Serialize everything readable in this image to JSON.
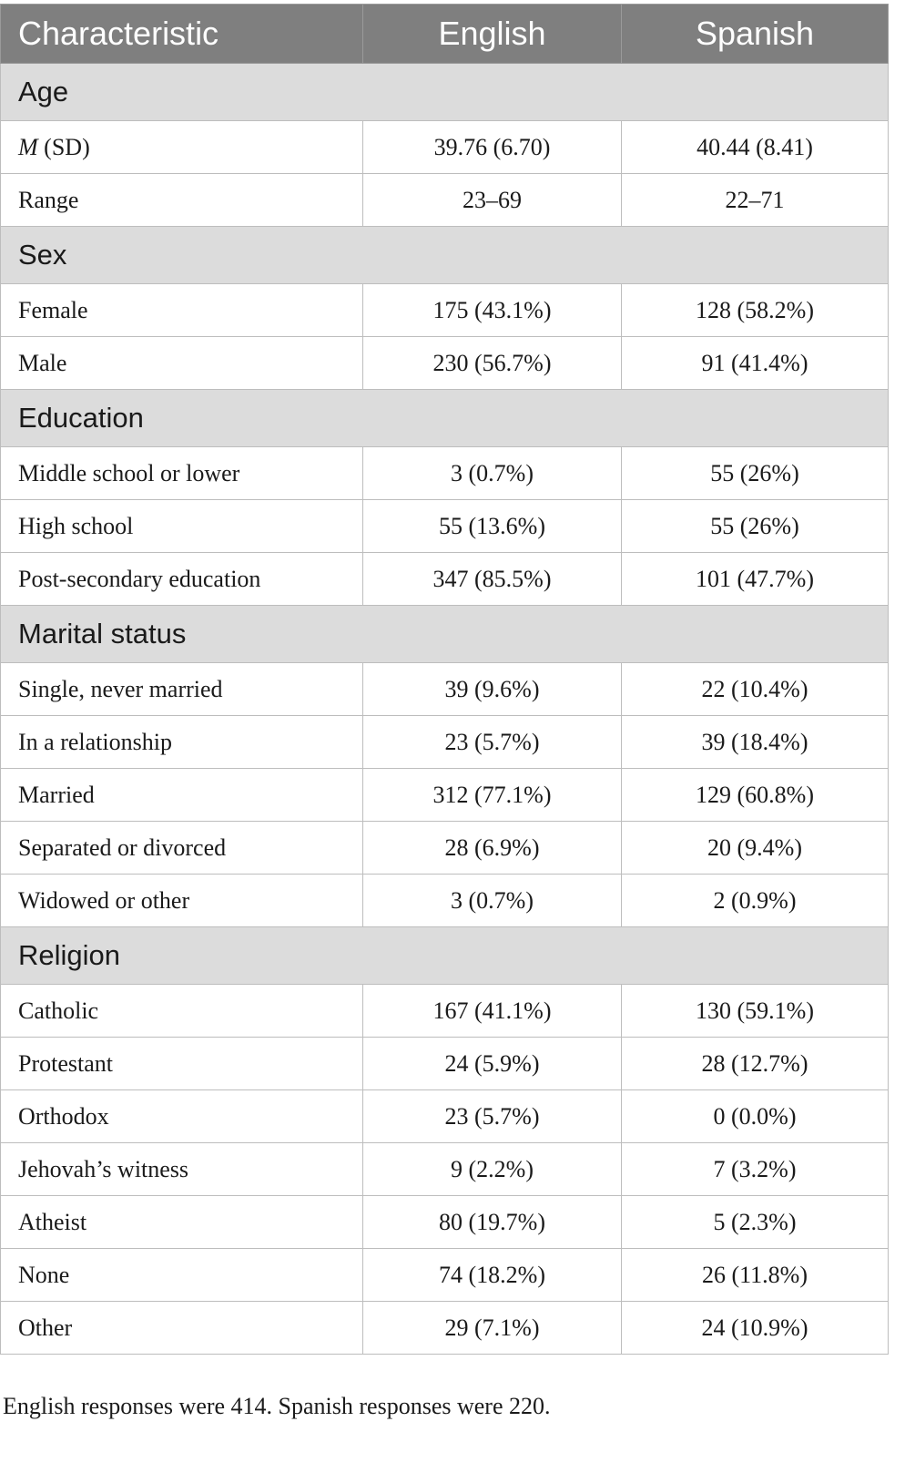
{
  "table": {
    "header": {
      "col1": "Characteristic",
      "col2": "English",
      "col3": "Spanish"
    },
    "sections": [
      {
        "title": "Age",
        "rows": [
          {
            "label_italic": "M",
            "label": " (SD)",
            "english": "39.76 (6.70)",
            "spanish": "40.44 (8.41)"
          },
          {
            "label": "Range",
            "english": "23–69",
            "spanish": "22–71"
          }
        ]
      },
      {
        "title": "Sex",
        "rows": [
          {
            "label": "Female",
            "english": "175 (43.1%)",
            "spanish": "128 (58.2%)"
          },
          {
            "label": "Male",
            "english": "230 (56.7%)",
            "spanish": "91 (41.4%)"
          }
        ]
      },
      {
        "title": "Education",
        "rows": [
          {
            "label": "Middle school or lower",
            "english": "3 (0.7%)",
            "spanish": "55 (26%)"
          },
          {
            "label": "High school",
            "english": "55 (13.6%)",
            "spanish": "55 (26%)"
          },
          {
            "label": "Post-secondary education",
            "english": "347 (85.5%)",
            "spanish": "101 (47.7%)"
          }
        ]
      },
      {
        "title": "Marital status",
        "rows": [
          {
            "label": "Single, never married",
            "english": "39 (9.6%)",
            "spanish": "22 (10.4%)"
          },
          {
            "label": "In a relationship",
            "english": "23 (5.7%)",
            "spanish": "39 (18.4%)"
          },
          {
            "label": "Married",
            "english": "312 (77.1%)",
            "spanish": "129 (60.8%)"
          },
          {
            "label": "Separated or divorced",
            "english": "28 (6.9%)",
            "spanish": "20 (9.4%)"
          },
          {
            "label": "Widowed or other",
            "english": "3 (0.7%)",
            "spanish": "2 (0.9%)"
          }
        ]
      },
      {
        "title": "Religion",
        "rows": [
          {
            "label": "Catholic",
            "english": "167 (41.1%)",
            "spanish": "130 (59.1%)"
          },
          {
            "label": "Protestant",
            "english": "24 (5.9%)",
            "spanish": "28 (12.7%)"
          },
          {
            "label": "Orthodox",
            "english": "23 (5.7%)",
            "spanish": "0 (0.0%)"
          },
          {
            "label": "Jehovah’s witness",
            "english": "9 (2.2%)",
            "spanish": "7 (3.2%)"
          },
          {
            "label": "Atheist",
            "english": "80 (19.7%)",
            "spanish": "5 (2.3%)"
          },
          {
            "label": "None",
            "english": "74 (18.2%)",
            "spanish": "26 (11.8%)"
          },
          {
            "label": "Other",
            "english": "29 (7.1%)",
            "spanish": "24 (10.9%)"
          }
        ]
      }
    ]
  },
  "footnote": "English responses were 414. Spanish responses were 220."
}
